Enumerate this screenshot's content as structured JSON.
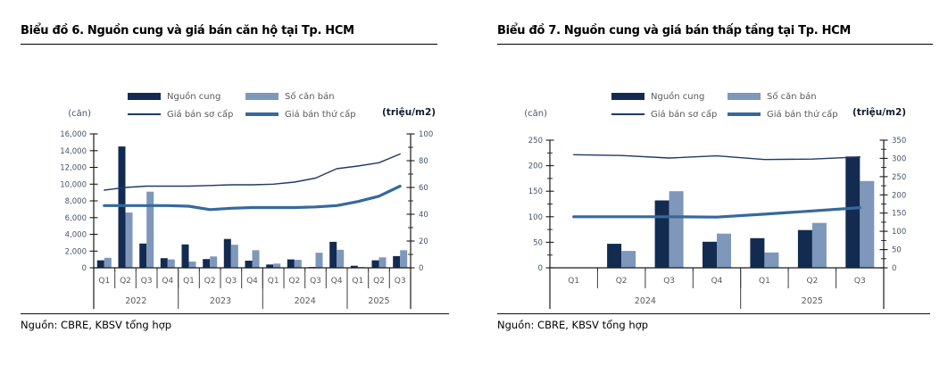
{
  "chart_data": [
    {
      "type": "bar+line",
      "title": "Biểu đồ 6. Nguồn cung và giá bán căn hộ tại Tp. HCM",
      "source": "Nguồn: CBRE, KBSV tổng hợp",
      "legend_position": "top-center",
      "left_axis": {
        "unit": "(căn)",
        "min": 0,
        "max": 16000,
        "tick_values": [
          0,
          2000,
          4000,
          6000,
          8000,
          10000,
          12000,
          14000,
          16000
        ],
        "tick_labels": [
          "0",
          "2,000",
          "4,000",
          "6,000",
          "8,000",
          "10,000",
          "12,000",
          "14,000",
          "16,000"
        ],
        "minor": false
      },
      "right_axis": {
        "unit": "(triệu/m2)",
        "min": 0,
        "max": 100,
        "tick_values": [
          0,
          20,
          40,
          60,
          80,
          100
        ],
        "tick_labels": [
          "0",
          "20",
          "40",
          "60",
          "80",
          "100"
        ],
        "minor": true
      },
      "categories": [
        "Q1",
        "Q2",
        "Q3",
        "Q4",
        "Q1",
        "Q2",
        "Q3",
        "Q4",
        "Q1",
        "Q2",
        "Q3",
        "Q4",
        "Q1",
        "Q2",
        "Q3"
      ],
      "years": [
        {
          "label": "2022",
          "span": 4
        },
        {
          "label": "2023",
          "span": 4
        },
        {
          "label": "2024",
          "span": 4
        },
        {
          "label": "2025",
          "span": 3
        }
      ],
      "series": [
        {
          "name": "Nguồn cung",
          "type": "bar",
          "axis": "left",
          "color": "#132b50",
          "values": [
            900,
            14500,
            2900,
            1150,
            2800,
            1050,
            3450,
            850,
            400,
            1000,
            100,
            3100,
            250,
            900,
            1400
          ]
        },
        {
          "name": "Số căn bán",
          "type": "bar",
          "axis": "left",
          "color": "#7e97ba",
          "values": [
            1200,
            6600,
            9100,
            1000,
            750,
            1350,
            2750,
            2100,
            500,
            950,
            1800,
            2150,
            100,
            1250,
            2100
          ]
        },
        {
          "name": "Giá bán sơ cấp",
          "type": "line",
          "axis": "right",
          "color": "#1d3a66",
          "width": 1.4,
          "values": [
            58,
            60,
            61,
            61,
            61,
            61.5,
            62,
            62,
            62.5,
            64,
            67,
            74,
            76,
            78.5,
            85
          ]
        },
        {
          "name": "Giá bán thứ cấp",
          "type": "line",
          "axis": "right",
          "color": "#35699e",
          "width": 3.2,
          "values": [
            46.5,
            46.5,
            46.5,
            46.5,
            46,
            43.5,
            44.5,
            45,
            45,
            45,
            45.5,
            46.5,
            49.5,
            53.5,
            61
          ]
        }
      ]
    },
    {
      "type": "bar+line",
      "title": "Biểu đồ 7. Nguồn cung và giá bán thấp tầng tại Tp. HCM",
      "source": "Nguồn: CBRE, KBSV tổng hợp",
      "legend_position": "top-center",
      "left_axis": {
        "unit": "(căn)",
        "min": 0,
        "max": 250,
        "tick_values": [
          0,
          50,
          100,
          150,
          200,
          250
        ],
        "tick_labels": [
          "0",
          "50",
          "100",
          "150",
          "200",
          "250"
        ],
        "minor": true
      },
      "right_axis": {
        "unit": "(triệu/m2)",
        "min": 0,
        "max": 350,
        "tick_values": [
          0,
          50,
          100,
          150,
          200,
          250,
          300,
          350
        ],
        "tick_labels": [
          "0",
          "50",
          "100",
          "150",
          "200",
          "250",
          "300",
          "350"
        ],
        "minor": true
      },
      "categories": [
        "Q1",
        "Q2",
        "Q3",
        "Q4",
        "Q1",
        "Q2",
        "Q3"
      ],
      "years": [
        {
          "label": "2024",
          "span": 4
        },
        {
          "label": "2025",
          "span": 3
        }
      ],
      "series": [
        {
          "name": "Nguồn cung",
          "type": "bar",
          "axis": "left",
          "color": "#132b50",
          "values": [
            0,
            47,
            132,
            51,
            58,
            74,
            218
          ]
        },
        {
          "name": "Số căn bán",
          "type": "bar",
          "axis": "left",
          "color": "#7e97ba",
          "values": [
            0,
            33,
            150,
            67,
            30,
            88,
            170
          ]
        },
        {
          "name": "Giá bán sơ cấp",
          "type": "line",
          "axis": "right",
          "color": "#1d3a66",
          "width": 1.4,
          "values": [
            310,
            308,
            301,
            307,
            297,
            298,
            304
          ]
        },
        {
          "name": "Giá bán thứ cấp",
          "type": "line",
          "axis": "right",
          "color": "#35699e",
          "width": 3.2,
          "values": [
            140,
            140,
            140,
            139,
            147,
            156,
            165
          ]
        }
      ]
    }
  ]
}
